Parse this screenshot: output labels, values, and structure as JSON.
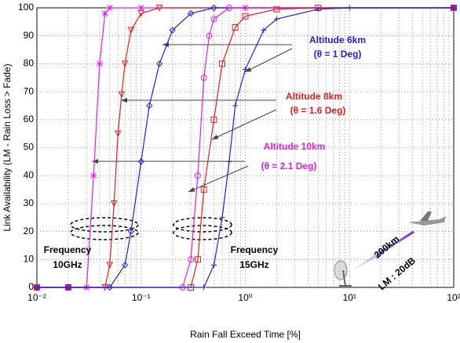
{
  "chart_data": {
    "type": "line",
    "xscale": "log",
    "grid": true,
    "xlabel": "Rain Fall Exceed Time [%]",
    "ylabel": "Link Availability (LM - Rain Loss > Fade)",
    "xlim": [
      0.01,
      100
    ],
    "ylim": [
      0,
      100
    ],
    "xticks": [
      {
        "value": 0.01,
        "label": "10⁻²"
      },
      {
        "value": 0.1,
        "label": "10⁻¹"
      },
      {
        "value": 1,
        "label": "10⁰"
      },
      {
        "value": 10,
        "label": "10¹"
      },
      {
        "value": 100,
        "label": "10²"
      }
    ],
    "yticks": [
      0,
      10,
      20,
      30,
      40,
      50,
      60,
      70,
      80,
      90,
      100
    ],
    "series": [
      {
        "color": "#e020e0",
        "marker": "star",
        "x": [
          0.01,
          0.02,
          0.03,
          0.035,
          0.04,
          0.045,
          0.05,
          0.1,
          1,
          100
        ],
        "values": [
          0,
          0,
          0,
          40,
          80,
          98,
          100,
          100,
          100,
          100
        ]
      },
      {
        "color": "#e02020",
        "marker": "triangle",
        "x": [
          0.01,
          0.02,
          0.045,
          0.05,
          0.055,
          0.06,
          0.065,
          0.07,
          0.08,
          0.1,
          0.15,
          100
        ],
        "values": [
          0,
          0,
          0,
          8,
          30,
          55,
          69,
          80,
          92,
          98,
          100,
          100
        ]
      },
      {
        "color": "#2020e0",
        "marker": "diamond",
        "x": [
          0.01,
          0.02,
          0.05,
          0.07,
          0.08,
          0.1,
          0.12,
          0.15,
          0.2,
          0.3,
          0.5,
          100
        ],
        "values": [
          0,
          0,
          0,
          8,
          20,
          45,
          65,
          80,
          92,
          98,
          100,
          100
        ]
      },
      {
        "color": "#e020e0",
        "marker": "circle",
        "x": [
          0.01,
          0.02,
          0.25,
          0.3,
          0.35,
          0.4,
          0.45,
          0.5,
          0.7,
          100
        ],
        "values": [
          0,
          0,
          0,
          10,
          40,
          75,
          90,
          96,
          100,
          100
        ]
      },
      {
        "color": "#e02020",
        "marker": "square",
        "x": [
          0.01,
          0.02,
          0.3,
          0.35,
          0.4,
          0.5,
          0.6,
          0.8,
          1,
          2,
          5,
          100
        ],
        "values": [
          0,
          0,
          0,
          10,
          35,
          60,
          80,
          93,
          97,
          99.5,
          100,
          100
        ]
      },
      {
        "color": "#2020e0",
        "marker": "plus",
        "x": [
          0.01,
          0.02,
          0.4,
          0.5,
          0.6,
          0.7,
          0.8,
          1,
          1.5,
          2,
          5,
          10,
          100
        ],
        "values": [
          0,
          0,
          0,
          8,
          25,
          45,
          65,
          78,
          92,
          96,
          99.5,
          100,
          100
        ]
      }
    ],
    "annotations": [
      {
        "text": "Altitude 6km",
        "color": "#2020e0"
      },
      {
        "text": "(θ  = 1 Deg)",
        "color": "#2020e0"
      },
      {
        "text": "Altitude 8km",
        "color": "#e02020"
      },
      {
        "text": "(θ  = 1.6 Deg)",
        "color": "#e02020"
      },
      {
        "text": "Altitude 10km",
        "color": "#e020e0"
      },
      {
        "text": "(θ  = 2.1 Deg)",
        "color": "#e020e0"
      },
      {
        "text": "Frequency",
        "color": "#000000"
      },
      {
        "text": "10GHz",
        "color": "#000000"
      },
      {
        "text": "Frequency",
        "color": "#000000"
      },
      {
        "text": "15GHz",
        "color": "#000000"
      },
      {
        "text": "200km",
        "color": "#000000"
      },
      {
        "text": "LM : 20dB",
        "color": "#000000"
      }
    ]
  }
}
